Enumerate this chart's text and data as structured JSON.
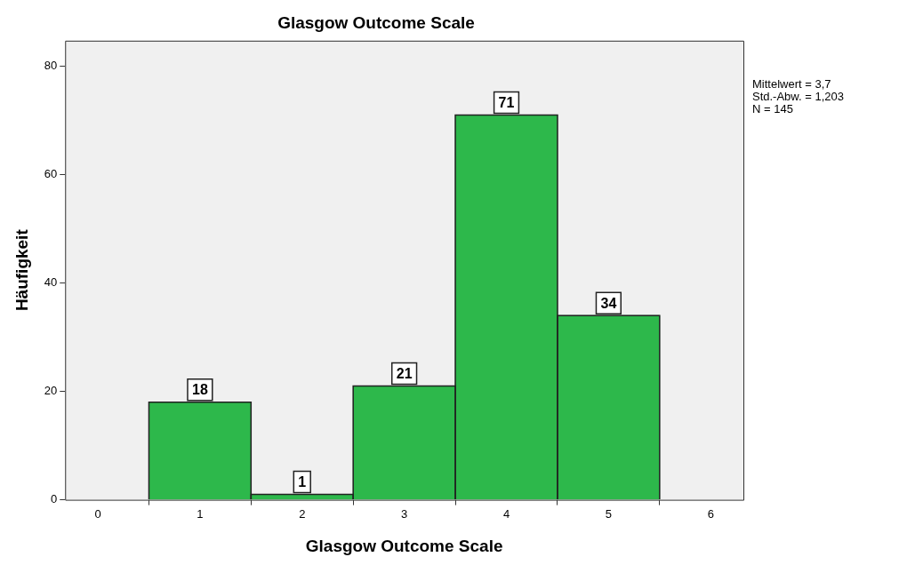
{
  "chart_data": {
    "type": "histogram",
    "title": "Glasgow Outcome Scale",
    "xlabel": "Glasgow Outcome Scale",
    "ylabel": "Häufigkeit",
    "bins": [
      0.5,
      1.5,
      2.5,
      3.5,
      4.5,
      5.5
    ],
    "values": [
      18,
      1,
      21,
      71,
      34
    ],
    "color": "#2db84b",
    "xlim": [
      -0.32,
      6.32
    ],
    "xticks": [
      0,
      1,
      2,
      3,
      4,
      5,
      6
    ],
    "ylim": [
      0,
      84.7
    ],
    "yticks": [
      0,
      20,
      40,
      60,
      80
    ],
    "data_labels": true,
    "grid": false,
    "legend": false,
    "annotations": [
      "Mittelwert = 3,7",
      "Std.-Abw. = 1,203",
      "N = 145"
    ]
  }
}
